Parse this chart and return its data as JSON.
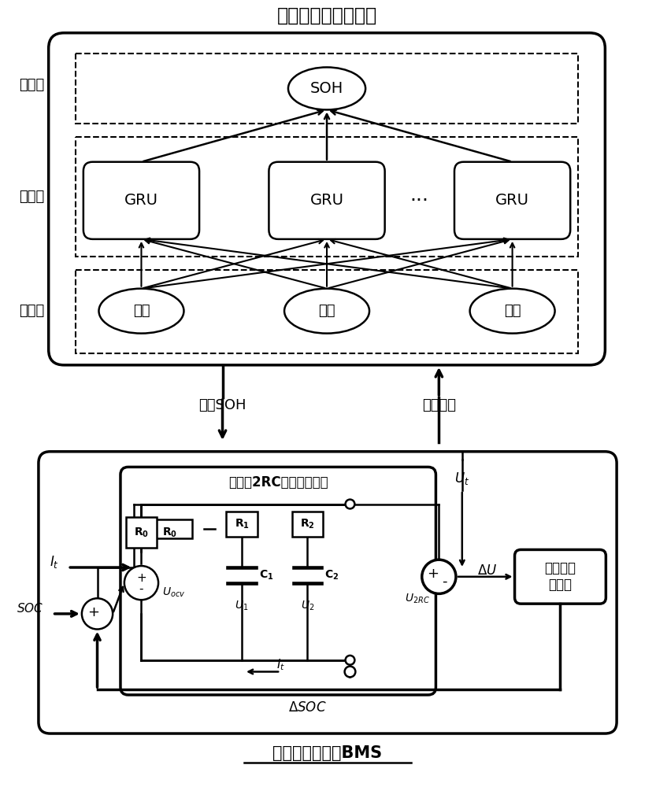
{
  "title_top": "数据调度中心计算机",
  "label_output": "输出层",
  "label_hidden": "隐含层",
  "label_input": "输入层",
  "gru_labels": [
    "GRU",
    "GRU",
    "GRU"
  ],
  "dots_label": "···",
  "input_labels": [
    "电流",
    "电压",
    "温度"
  ],
  "soh_label": "SOH",
  "arrow_label_left": "电池SOH",
  "arrow_label_right": "历史数据",
  "bms_title": "分布式储能单元BMS",
  "circuit_title": "锂电池2RC等效电路模型",
  "ekf_label": "扩展卡尔\n曼滤波",
  "bg_color": "#ffffff",
  "line_color": "#000000"
}
